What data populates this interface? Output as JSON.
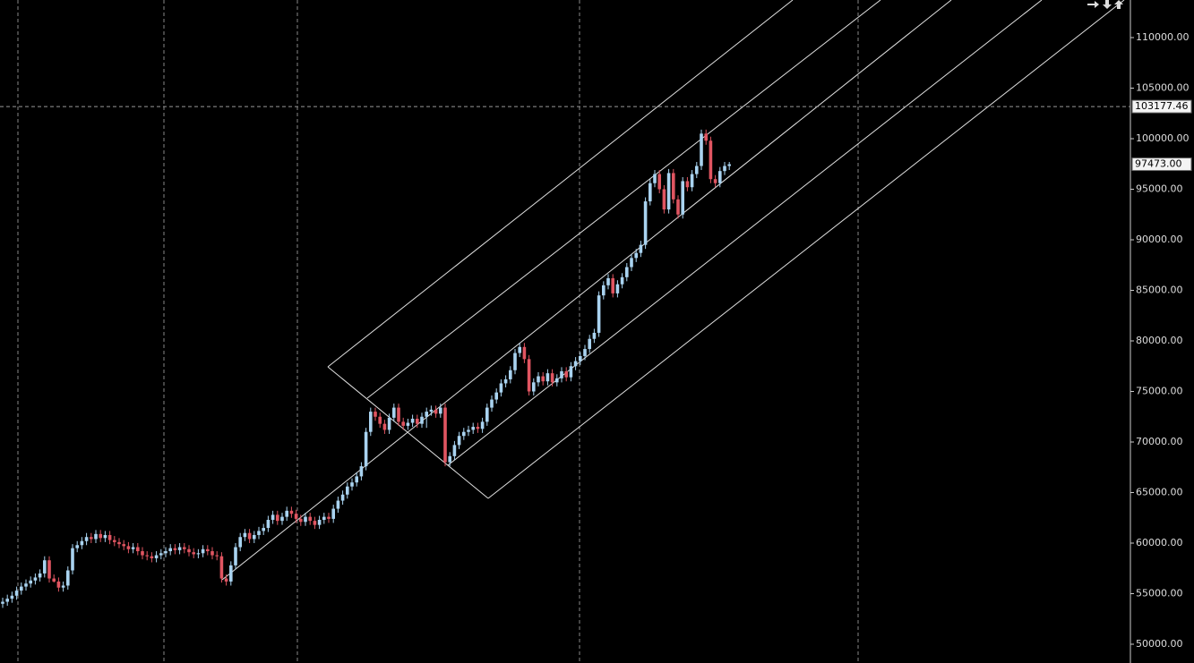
{
  "chart_data": {
    "type": "candlestick",
    "ylim": [
      48142,
      113717
    ],
    "yticks": [
      {
        "value": 50000,
        "label": "50000.00"
      },
      {
        "value": 55000,
        "label": "55000.00"
      },
      {
        "value": 60000,
        "label": "60000.00"
      },
      {
        "value": 65000,
        "label": "65000.00"
      },
      {
        "value": 70000,
        "label": "70000.00"
      },
      {
        "value": 75000,
        "label": "75000.00"
      },
      {
        "value": 80000,
        "label": "80000.00"
      },
      {
        "value": 85000,
        "label": "85000.00"
      },
      {
        "value": 90000,
        "label": "90000.00"
      },
      {
        "value": 95000,
        "label": "95000.00"
      },
      {
        "value": 100000,
        "label": "100000.00"
      },
      {
        "value": 105000,
        "label": "105000.00"
      },
      {
        "value": 110000,
        "label": "110000.00"
      }
    ],
    "up_color": "#a9d3f0",
    "down_color": "#e05561",
    "crosshair_price": 103177.46,
    "last_price": {
      "value": 97473,
      "label": "97473.00"
    },
    "open": [
      54000,
      54200,
      54500,
      54800,
      55300,
      55700,
      56000,
      56300,
      56600,
      57000,
      58300,
      56500,
      56200,
      55600,
      55800,
      57300,
      59500,
      59800,
      60200,
      60600,
      60400,
      60900,
      60500,
      60800,
      60300,
      60100,
      59900,
      59700,
      59400,
      59600,
      59200,
      58800,
      58700,
      58500,
      58800,
      59000,
      59200,
      59500,
      59300,
      59600,
      59400,
      59100,
      58900,
      59000,
      59400,
      59200,
      58800,
      58700,
      56500,
      56200,
      57800,
      59600,
      60600,
      61000,
      60400,
      60800,
      61200,
      61500,
      62300,
      62800,
      62200,
      62600,
      63200,
      62900,
      62400,
      62100,
      62600,
      62200,
      61800,
      62300,
      62600,
      62400,
      63400,
      64200,
      64800,
      65600,
      66000,
      66600,
      67600,
      71000,
      73000,
      72500,
      71800,
      71200,
      72400,
      73400,
      72000,
      71600,
      71900,
      72300,
      71800,
      72500,
      73000,
      73200,
      72800,
      73400,
      68000,
      68600,
      69700,
      70600,
      71000,
      71200,
      71500,
      71300,
      72000,
      73400,
      74200,
      74900,
      75800,
      76200,
      77100,
      78800,
      79400,
      78200,
      75000,
      75900,
      76500,
      76000,
      76800,
      75900,
      76300,
      77000,
      76400,
      77500,
      78000,
      78500,
      79200,
      80200,
      80800,
      84500,
      85500,
      86200,
      84700,
      85600,
      86300,
      87300,
      88200,
      88700,
      89500,
      93800,
      95600,
      96500,
      95000,
      93000,
      96600,
      94000,
      92500,
      95800,
      95200,
      96500,
      97300,
      100500,
      99800,
      96000,
      95600,
      96800,
      97300
    ],
    "high": [
      54600,
      54900,
      55200,
      55700,
      56100,
      56400,
      56700,
      57000,
      57400,
      58700,
      58700,
      56900,
      56600,
      56200,
      57700,
      59900,
      60200,
      60600,
      61000,
      61000,
      61300,
      61300,
      61200,
      61200,
      60700,
      60500,
      60300,
      60100,
      60000,
      60000,
      59600,
      59200,
      59100,
      59200,
      59400,
      59600,
      59900,
      59900,
      60000,
      60000,
      59800,
      59500,
      59400,
      59800,
      59800,
      59600,
      59200,
      59100,
      56900,
      58200,
      60000,
      61000,
      61400,
      61400,
      61200,
      61600,
      61900,
      62700,
      63200,
      63200,
      63000,
      63600,
      63600,
      63300,
      62800,
      63000,
      63000,
      62600,
      62700,
      63000,
      63000,
      63800,
      64600,
      65200,
      66000,
      66400,
      67000,
      68000,
      71400,
      73400,
      73400,
      72900,
      72200,
      72800,
      73800,
      73800,
      72400,
      72300,
      72700,
      72700,
      72900,
      73400,
      73600,
      73600,
      73800,
      73800,
      69000,
      70100,
      71000,
      71400,
      71600,
      71900,
      71900,
      72400,
      73800,
      74600,
      75300,
      76200,
      76600,
      77500,
      79200,
      79800,
      79800,
      78600,
      76300,
      76900,
      76900,
      77200,
      77200,
      76700,
      77400,
      77400,
      77900,
      78400,
      78900,
      79600,
      80600,
      81200,
      84900,
      85900,
      86600,
      86600,
      86000,
      86700,
      87700,
      88600,
      89100,
      89900,
      94200,
      96000,
      96900,
      96900,
      95400,
      97000,
      97000,
      94400,
      96200,
      96200,
      96900,
      97700,
      100900,
      100900,
      100200,
      96400,
      97200,
      97700,
      97700
    ],
    "low": [
      53600,
      53800,
      54100,
      54400,
      54900,
      55300,
      55600,
      55900,
      56200,
      56600,
      56100,
      56100,
      55200,
      55200,
      55400,
      56900,
      59100,
      59400,
      59800,
      60000,
      60000,
      60100,
      60100,
      59900,
      59700,
      59500,
      59300,
      59000,
      59000,
      58800,
      58400,
      58300,
      58100,
      58100,
      58400,
      58600,
      58800,
      58900,
      58900,
      59000,
      58700,
      58500,
      58500,
      58600,
      58800,
      58400,
      58300,
      56100,
      55800,
      55800,
      57400,
      59200,
      60200,
      60000,
      60000,
      60400,
      60800,
      61100,
      61900,
      61800,
      61800,
      62200,
      62500,
      62000,
      61700,
      61700,
      61800,
      61400,
      61400,
      61900,
      62000,
      62000,
      63000,
      63800,
      64400,
      65200,
      65600,
      66200,
      67200,
      70600,
      72100,
      71400,
      70800,
      70800,
      72000,
      71600,
      71200,
      71200,
      71500,
      71400,
      71400,
      71400,
      72600,
      72400,
      72400,
      67600,
      67600,
      68200,
      69300,
      70200,
      70600,
      70800,
      70900,
      70900,
      71600,
      73000,
      73800,
      74500,
      75400,
      75800,
      76700,
      78400,
      77800,
      74600,
      74600,
      75500,
      75600,
      75600,
      75500,
      75500,
      75900,
      76000,
      76000,
      77100,
      77600,
      78100,
      78800,
      79800,
      80400,
      84100,
      85100,
      84300,
      84300,
      85200,
      85900,
      86900,
      87800,
      88300,
      89100,
      93400,
      95200,
      94600,
      92600,
      92600,
      93600,
      92100,
      92100,
      94800,
      94800,
      96100,
      96900,
      99400,
      95600,
      95200,
      95200,
      96400,
      96900
    ],
    "close": [
      54200,
      54500,
      54800,
      55300,
      55700,
      56000,
      56300,
      56600,
      57000,
      58300,
      56500,
      56200,
      55600,
      55800,
      57300,
      59500,
      59800,
      60200,
      60600,
      60400,
      60900,
      60500,
      60800,
      60300,
      60100,
      59900,
      59700,
      59400,
      59600,
      59200,
      58800,
      58700,
      58500,
      58800,
      59000,
      59200,
      59500,
      59300,
      59600,
      59400,
      59100,
      58900,
      59000,
      59400,
      59200,
      58800,
      58700,
      56500,
      56200,
      57800,
      59600,
      60600,
      61000,
      60400,
      60800,
      61200,
      61500,
      62300,
      62800,
      62200,
      62600,
      63200,
      62900,
      62400,
      62100,
      62600,
      62200,
      61800,
      62300,
      62600,
      62400,
      63400,
      64200,
      64800,
      65600,
      66000,
      66600,
      67600,
      71000,
      73000,
      72500,
      71800,
      71200,
      72400,
      73400,
      72000,
      71600,
      71900,
      72300,
      71800,
      72500,
      73000,
      73200,
      72800,
      73400,
      68000,
      68600,
      69700,
      70600,
      71000,
      71200,
      71500,
      71300,
      72000,
      73400,
      74200,
      74900,
      75800,
      76200,
      77100,
      78800,
      79400,
      78200,
      75000,
      75900,
      76500,
      76000,
      76800,
      75900,
      76300,
      77000,
      76400,
      77500,
      78000,
      78500,
      79200,
      80200,
      80800,
      84500,
      85500,
      86200,
      84700,
      85600,
      86300,
      87300,
      88200,
      88700,
      89500,
      93800,
      95600,
      96500,
      95000,
      93000,
      96600,
      94000,
      92500,
      95800,
      95200,
      96500,
      97300,
      100500,
      99800,
      96000,
      95600,
      96800,
      97300,
      97473
    ]
  }
}
